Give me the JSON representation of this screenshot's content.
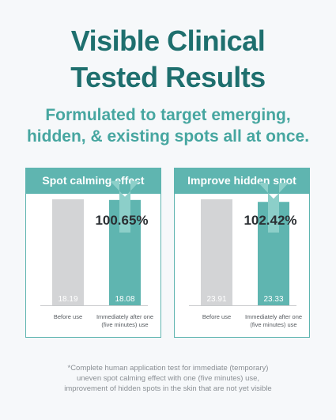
{
  "headline": {
    "line1": "Visible Clinical",
    "line2": "Tested Results"
  },
  "subheadline": {
    "line1": "Formulated to target emerging,",
    "line2": "hidden, & existing spots all at once."
  },
  "colors": {
    "headline": "#1e6f6e",
    "subheadline": "#46a6a0",
    "accent": "#5fb5b0",
    "before_bar": "#d3d4d6",
    "arrow": "#8ccfc9"
  },
  "chart_data": [
    {
      "type": "bar",
      "title": "Spot calming effect",
      "categories": [
        "Before use",
        "Immediately after one (five minutes) use"
      ],
      "category_label_lines": [
        [
          "Before use"
        ],
        [
          "Immediately after one",
          "(five minutes) use"
        ]
      ],
      "values": [
        18.19,
        18.08
      ],
      "value_labels": [
        "18.19",
        "18.08"
      ],
      "improvement_label": "100.65%",
      "xlabel": "",
      "ylabel": "",
      "grid": false
    },
    {
      "type": "bar",
      "title": "Improve hidden spot",
      "categories": [
        "Before use",
        "Immediately after one (five minutes) use"
      ],
      "category_label_lines": [
        [
          "Before use"
        ],
        [
          "Immediately after one",
          "(five minutes) use"
        ]
      ],
      "values": [
        23.91,
        23.33
      ],
      "value_labels": [
        "23.91",
        "23.33"
      ],
      "improvement_label": "102.42%",
      "xlabel": "",
      "ylabel": "",
      "grid": false
    }
  ],
  "footnote": {
    "line1": "*Complete human application test for immediate (temporary)",
    "line2": "uneven spot calming effect with one (five minutes) use,",
    "line3": "improvement of hidden spots in the skin that are not yet visible"
  }
}
